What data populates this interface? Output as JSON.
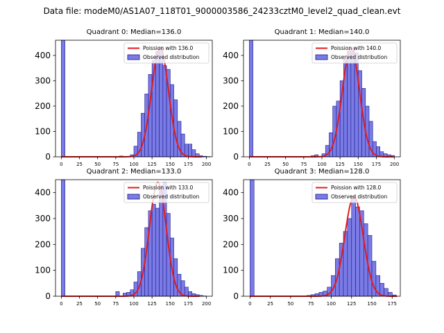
{
  "figure": {
    "title": "Data file: modeM0/AS1A07_118T01_9000003586_24233cztM0_level2_quad_clean.evt"
  },
  "colors": {
    "bar_fill": "#7b7be6",
    "bar_edge": "#1a1a8c",
    "fit_line": "#e31a1c",
    "axis": "#000000"
  },
  "chart_data": [
    {
      "type": "bar",
      "title": "Quadrant 0: Median=136.0",
      "median": 136.0,
      "legend": [
        "Poission with 136.0",
        "Observed distribution"
      ],
      "xlim": [
        -8,
        208
      ],
      "ylim": [
        0,
        460
      ],
      "xticks": [
        0,
        25,
        50,
        75,
        100,
        125,
        150,
        175,
        200
      ],
      "yticks": [
        0,
        100,
        200,
        300,
        400
      ],
      "bin_width": 5,
      "zero_bin_count": 460,
      "bins": [
        [
          80,
          3
        ],
        [
          90,
          1
        ],
        [
          95,
          8
        ],
        [
          100,
          42
        ],
        [
          105,
          97
        ],
        [
          110,
          172
        ],
        [
          115,
          248
        ],
        [
          120,
          325
        ],
        [
          125,
          380
        ],
        [
          130,
          415
        ],
        [
          135,
          432
        ],
        [
          140,
          360
        ],
        [
          145,
          345
        ],
        [
          150,
          285
        ],
        [
          155,
          225
        ],
        [
          160,
          140
        ],
        [
          165,
          90
        ],
        [
          170,
          50
        ],
        [
          175,
          50
        ],
        [
          180,
          28
        ],
        [
          185,
          12
        ],
        [
          190,
          4
        ],
        [
          195,
          2
        ],
        [
          200,
          1
        ]
      ]
    },
    {
      "type": "bar",
      "title": "Quadrant 1: Median=140.0",
      "median": 140.0,
      "legend": [
        "Poission with 140.0",
        "Observed distribution"
      ],
      "xlim": [
        -8,
        208
      ],
      "ylim": [
        0,
        460
      ],
      "xticks": [
        0,
        25,
        50,
        75,
        100,
        125,
        150,
        175,
        200
      ],
      "yticks": [
        0,
        100,
        200,
        300,
        400
      ],
      "bin_width": 5,
      "zero_bin_count": 460,
      "bins": [
        [
          85,
          4
        ],
        [
          90,
          8
        ],
        [
          100,
          12
        ],
        [
          105,
          45
        ],
        [
          110,
          95
        ],
        [
          115,
          200
        ],
        [
          120,
          220
        ],
        [
          125,
          300
        ],
        [
          130,
          385
        ],
        [
          135,
          415
        ],
        [
          140,
          430
        ],
        [
          145,
          410
        ],
        [
          150,
          340
        ],
        [
          155,
          270
        ],
        [
          160,
          200
        ],
        [
          165,
          140
        ],
        [
          170,
          60
        ],
        [
          175,
          40
        ],
        [
          180,
          20
        ],
        [
          185,
          12
        ],
        [
          190,
          8
        ],
        [
          195,
          5
        ]
      ]
    },
    {
      "type": "bar",
      "title": "Quadrant 2: Median=133.0",
      "median": 133.0,
      "legend": [
        "Poission with 133.0",
        "Observed distribution"
      ],
      "xlim": [
        -8,
        208
      ],
      "ylim": [
        0,
        450
      ],
      "xticks": [
        0,
        25,
        50,
        75,
        100,
        125,
        150,
        175,
        200
      ],
      "yticks": [
        0,
        100,
        200,
        300,
        400
      ],
      "bin_width": 5,
      "zero_bin_count": 450,
      "bins": [
        [
          75,
          18
        ],
        [
          85,
          12
        ],
        [
          90,
          15
        ],
        [
          95,
          25
        ],
        [
          100,
          55
        ],
        [
          105,
          95
        ],
        [
          110,
          185
        ],
        [
          115,
          265
        ],
        [
          120,
          330
        ],
        [
          125,
          355
        ],
        [
          130,
          340
        ],
        [
          135,
          425
        ],
        [
          140,
          440
        ],
        [
          145,
          320
        ],
        [
          150,
          225
        ],
        [
          155,
          145
        ],
        [
          160,
          85
        ],
        [
          165,
          60
        ],
        [
          170,
          35
        ],
        [
          175,
          18
        ],
        [
          180,
          10
        ],
        [
          185,
          6
        ],
        [
          190,
          3
        ],
        [
          195,
          1
        ]
      ]
    },
    {
      "type": "bar",
      "title": "Quadrant 3: Median=128.0",
      "median": 128.0,
      "legend": [
        "Poission with 128.0",
        "Observed distribution"
      ],
      "xlim": [
        -8,
        185
      ],
      "ylim": [
        0,
        450
      ],
      "xticks": [
        0,
        25,
        50,
        75,
        100,
        125,
        150,
        175
      ],
      "yticks": [
        0,
        100,
        200,
        300,
        400
      ],
      "bin_width": 5,
      "zero_bin_count": 450,
      "bins": [
        [
          70,
          3
        ],
        [
          75,
          6
        ],
        [
          80,
          10
        ],
        [
          85,
          15
        ],
        [
          90,
          20
        ],
        [
          95,
          35
        ],
        [
          100,
          80
        ],
        [
          105,
          145
        ],
        [
          110,
          205
        ],
        [
          115,
          250
        ],
        [
          120,
          300
        ],
        [
          125,
          385
        ],
        [
          130,
          345
        ],
        [
          135,
          330
        ],
        [
          140,
          280
        ],
        [
          145,
          235
        ],
        [
          150,
          135
        ],
        [
          155,
          80
        ],
        [
          160,
          50
        ],
        [
          165,
          30
        ],
        [
          170,
          15
        ],
        [
          175,
          5
        ]
      ]
    }
  ]
}
